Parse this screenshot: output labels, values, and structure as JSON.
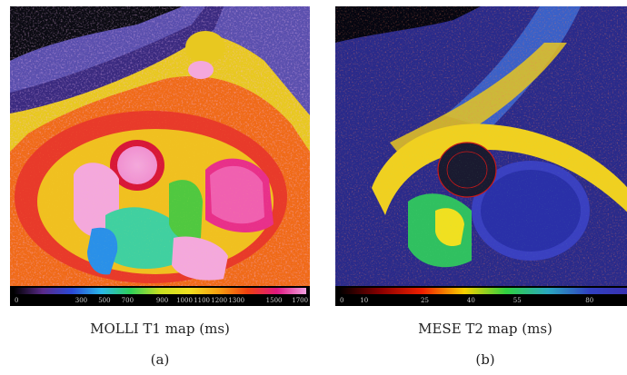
{
  "panels": [
    {
      "caption": "MOLLI T1 map (ms)",
      "label": "(a)",
      "scale_ticks": [
        "0",
        "300",
        "500",
        "700",
        "900",
        "1000",
        "1100",
        "1200",
        "1300",
        "1500",
        "1700"
      ],
      "scale_colors": [
        "#000000",
        "#5a2a8a",
        "#2a4ad8",
        "#2ab8e8",
        "#2fd05a",
        "#c8e020",
        "#f0e020",
        "#f8a010",
        "#f04010",
        "#e01880",
        "#f0a0e0"
      ]
    },
    {
      "caption": "MESE T2 map (ms)",
      "label": "(b)",
      "scale_ticks": [
        "0",
        "10",
        "25",
        "40",
        "55",
        "80"
      ],
      "scale_colors": [
        "#000000",
        "#8a0000",
        "#f02000",
        "#f8d000",
        "#30d040",
        "#2aa8c0",
        "#3040c0",
        "#3a30b0"
      ]
    }
  ]
}
